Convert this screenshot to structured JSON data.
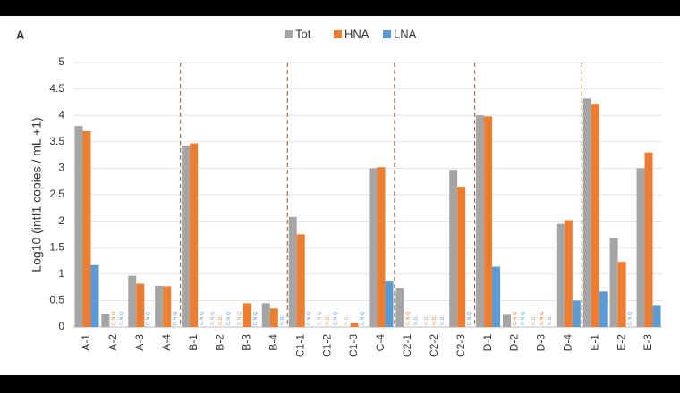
{
  "chart_data": {
    "type": "bar",
    "panel_label": "A",
    "ylabel": "Log10 (intI1 copies / mL +1)",
    "categories": [
      "A-1",
      "A-2",
      "A-3",
      "A-4",
      "B-1",
      "B-2",
      "B-3",
      "B-4",
      "C1-1",
      "C1-2",
      "C1-3",
      "C-4",
      "C2-1",
      "C2-2",
      "C2-3",
      "D-1",
      "D-2",
      "D-3",
      "D-4",
      "E-1",
      "E-2",
      "E-3"
    ],
    "series": [
      {
        "name": "Tot",
        "color": "#a5a5a5",
        "values": [
          3.8,
          0.25,
          0.97,
          0.78,
          3.43,
          null,
          null,
          0.45,
          2.08,
          null,
          null,
          3.0,
          0.73,
          null,
          2.97,
          4.0,
          0.23,
          null,
          1.95,
          4.32,
          1.68,
          3.0
        ],
        "value_labels": [
          null,
          null,
          null,
          null,
          null,
          "D.N.Q",
          "D.N.Q",
          null,
          null,
          "D.N.Q",
          "N.D.",
          null,
          null,
          "N.D.",
          null,
          null,
          null,
          "N.D.",
          null,
          null,
          null,
          null
        ]
      },
      {
        "name": "HNA",
        "color": "#ed7d31",
        "values": [
          3.7,
          null,
          0.82,
          0.77,
          3.47,
          null,
          0.45,
          0.35,
          1.75,
          null,
          0.07,
          3.02,
          null,
          null,
          2.65,
          3.98,
          null,
          null,
          2.02,
          4.22,
          1.23,
          3.3
        ],
        "value_labels": [
          null,
          "D.N.Q",
          null,
          null,
          null,
          "N.D.",
          null,
          null,
          null,
          "N.D.",
          null,
          null,
          "D.N.Q",
          "N.D.",
          null,
          null,
          "D.N.Q",
          "D.N.Q",
          null,
          null,
          null,
          null
        ]
      },
      {
        "name": "LNA",
        "color": "#5b9bd5",
        "values": [
          1.17,
          null,
          null,
          null,
          null,
          null,
          null,
          null,
          null,
          null,
          null,
          0.86,
          null,
          null,
          null,
          1.14,
          null,
          null,
          0.5,
          0.67,
          null,
          0.4
        ],
        "value_labels": [
          null,
          "D.N.Q",
          "D.N.Q",
          "D.N.Q",
          "D.N.Q",
          "D.N.Q",
          "D.N.Q",
          "N.D.",
          "D.N.Q",
          "D.N.Q",
          "D.N.Q",
          null,
          "N.D.",
          "N.D.",
          "D.N.Q",
          null,
          "D.N.Q",
          "N.D.",
          null,
          null,
          "D.N.Q",
          null
        ]
      }
    ],
    "ylim": [
      0,
      5
    ],
    "yticks": [
      0,
      0.5,
      1,
      1.5,
      2,
      2.5,
      3,
      3.5,
      4,
      4.5,
      5
    ],
    "grid": true
  }
}
